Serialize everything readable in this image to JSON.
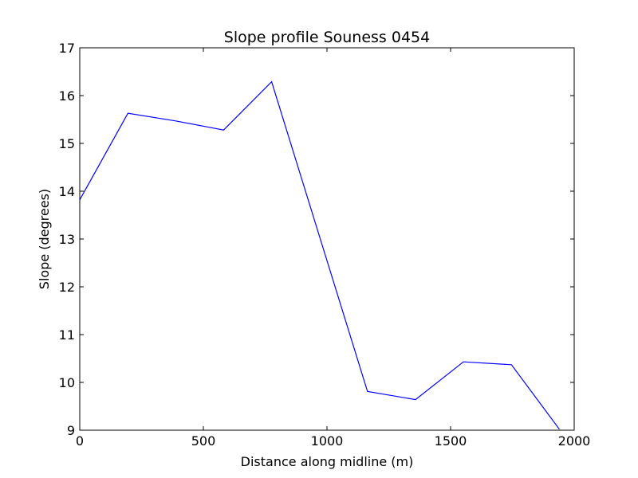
{
  "chart_data": {
    "type": "line",
    "title": "Slope profile Souness 0454",
    "xlabel": "Distance along midline (m)",
    "ylabel": "Slope (degrees)",
    "xlim": [
      0,
      2000
    ],
    "ylim": [
      9,
      17
    ],
    "xticks": [
      0,
      500,
      1000,
      1500,
      2000
    ],
    "yticks": [
      9,
      10,
      11,
      12,
      13,
      14,
      15,
      16,
      17
    ],
    "xtick_labels": [
      "0",
      "500",
      "1000",
      "1500",
      "2000"
    ],
    "ytick_labels": [
      "9",
      "10",
      "11",
      "12",
      "13",
      "14",
      "15",
      "16",
      "17"
    ],
    "grid": false,
    "series": [
      {
        "color": "#0000ff",
        "x": [
          0,
          195,
          388,
          582,
          776,
          970,
          1164,
          1358,
          1552,
          1746,
          1940
        ],
        "y": [
          13.82,
          15.63,
          15.47,
          15.28,
          16.29,
          13.05,
          9.81,
          9.64,
          10.43,
          10.37,
          9.02
        ]
      }
    ]
  }
}
